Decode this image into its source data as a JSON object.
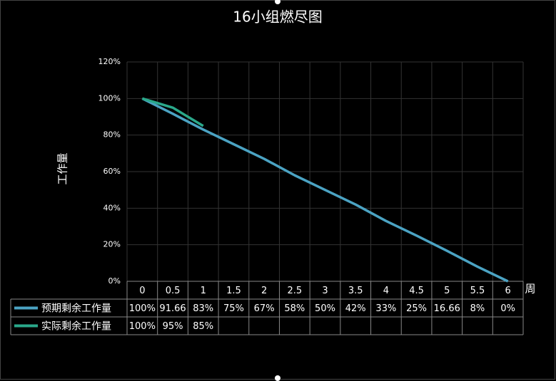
{
  "chart_data": {
    "type": "line",
    "title": "16小组燃尽图",
    "x_label": "周",
    "y_label": "工作量",
    "categories": [
      0,
      0.5,
      1,
      1.5,
      2,
      2.5,
      3,
      3.5,
      4,
      4.5,
      5,
      5.5,
      6
    ],
    "series": [
      {
        "name": "预期剩余工作量",
        "color": "#4ba3c3",
        "values": [
          100,
          91.66,
          83,
          75,
          67,
          58,
          50,
          42,
          33,
          25,
          16.66,
          8,
          0
        ],
        "value_labels": [
          "100%",
          "91.66",
          "83%",
          "75%",
          "67%",
          "58%",
          "50%",
          "42%",
          "33%",
          "25%",
          "16.66",
          "8%",
          "0%"
        ]
      },
      {
        "name": "实际剩余工作量",
        "color": "#2aa88a",
        "values": [
          100,
          95,
          85,
          null,
          null,
          null,
          null,
          null,
          null,
          null,
          null,
          null,
          null
        ],
        "value_labels": [
          "100%",
          "95%",
          "85%",
          null,
          null,
          null,
          null,
          null,
          null,
          null,
          null,
          null,
          null
        ]
      }
    ],
    "ylim": [
      0,
      120
    ],
    "yticks": [
      {
        "value": 0,
        "label": "0%"
      },
      {
        "value": 20,
        "label": "20%"
      },
      {
        "value": 40,
        "label": "40%"
      },
      {
        "value": 60,
        "label": "60%"
      },
      {
        "value": 80,
        "label": "80%"
      },
      {
        "value": 100,
        "label": "100%"
      },
      {
        "value": 120,
        "label": "120%"
      }
    ],
    "grid": true
  }
}
